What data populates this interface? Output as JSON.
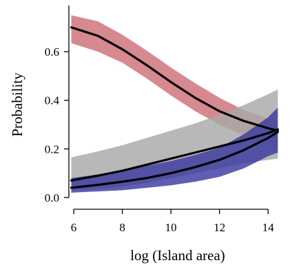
{
  "chart_data": {
    "type": "line",
    "xlabel": "log (Island area)",
    "ylabel": "Probability",
    "xlim": [
      5.8,
      14.7
    ],
    "ylim": [
      -0.02,
      0.79
    ],
    "x_ticks": [
      6,
      8,
      10,
      12,
      14
    ],
    "y_ticks": [
      0.0,
      0.2,
      0.4,
      0.6
    ],
    "x_tick_labels": [
      "6",
      "8",
      "10",
      "12",
      "14"
    ],
    "y_tick_labels": [
      "0.0",
      "0.2",
      "0.4",
      "0.6"
    ],
    "grid": false,
    "legend": "none",
    "series": [
      {
        "color": "#cd6f76",
        "x": [
          5.9,
          7,
          8,
          9,
          10,
          11,
          12,
          13,
          14,
          14.4
        ],
        "values": [
          0.7,
          0.665,
          0.61,
          0.545,
          0.475,
          0.41,
          0.355,
          0.315,
          0.285,
          0.275
        ],
        "lower": [
          0.635,
          0.6,
          0.555,
          0.49,
          0.42,
          0.355,
          0.3,
          0.255,
          0.215,
          0.2
        ],
        "upper": [
          0.75,
          0.725,
          0.67,
          0.605,
          0.535,
          0.47,
          0.41,
          0.36,
          0.325,
          0.315
        ]
      },
      {
        "color": "#a8a8a8",
        "x": [
          5.9,
          7,
          8,
          9,
          10,
          11,
          12,
          13,
          14,
          14.4
        ],
        "values": [
          0.07,
          0.09,
          0.11,
          0.135,
          0.16,
          0.185,
          0.21,
          0.235,
          0.265,
          0.28
        ],
        "lower": [
          0.03,
          0.035,
          0.045,
          0.06,
          0.08,
          0.1,
          0.12,
          0.14,
          0.155,
          0.16
        ],
        "upper": [
          0.165,
          0.19,
          0.215,
          0.245,
          0.275,
          0.305,
          0.34,
          0.38,
          0.425,
          0.445
        ]
      },
      {
        "color": "#3d3aa0",
        "x": [
          5.9,
          7,
          8,
          9,
          10,
          11,
          12,
          13,
          14,
          14.4
        ],
        "values": [
          0.04,
          0.052,
          0.065,
          0.08,
          0.1,
          0.125,
          0.155,
          0.195,
          0.245,
          0.27
        ],
        "lower": [
          0.02,
          0.025,
          0.03,
          0.04,
          0.05,
          0.065,
          0.085,
          0.12,
          0.17,
          0.185
        ],
        "upper": [
          0.08,
          0.095,
          0.11,
          0.13,
          0.15,
          0.175,
          0.205,
          0.26,
          0.33,
          0.37
        ]
      }
    ]
  }
}
